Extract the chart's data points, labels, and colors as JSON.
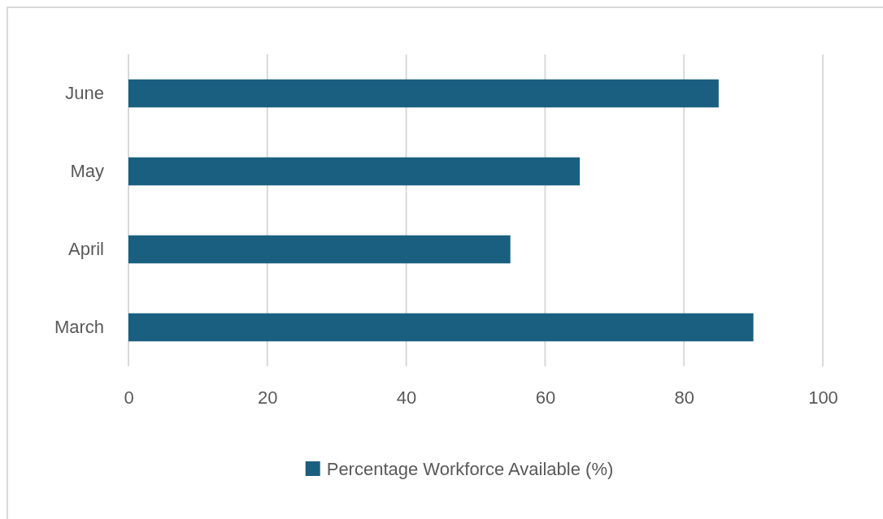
{
  "chart_data": {
    "type": "bar",
    "orientation": "horizontal",
    "categories": [
      "June",
      "May",
      "April",
      "March"
    ],
    "series": [
      {
        "name": "Percentage Workforce Available (%)",
        "color": "#1a5f7f",
        "values": [
          85,
          65,
          55,
          90
        ]
      }
    ],
    "xlim": [
      0,
      100
    ],
    "xticks": [
      0,
      20,
      40,
      60,
      80,
      100
    ],
    "grid": "x",
    "legend": "bottom"
  }
}
